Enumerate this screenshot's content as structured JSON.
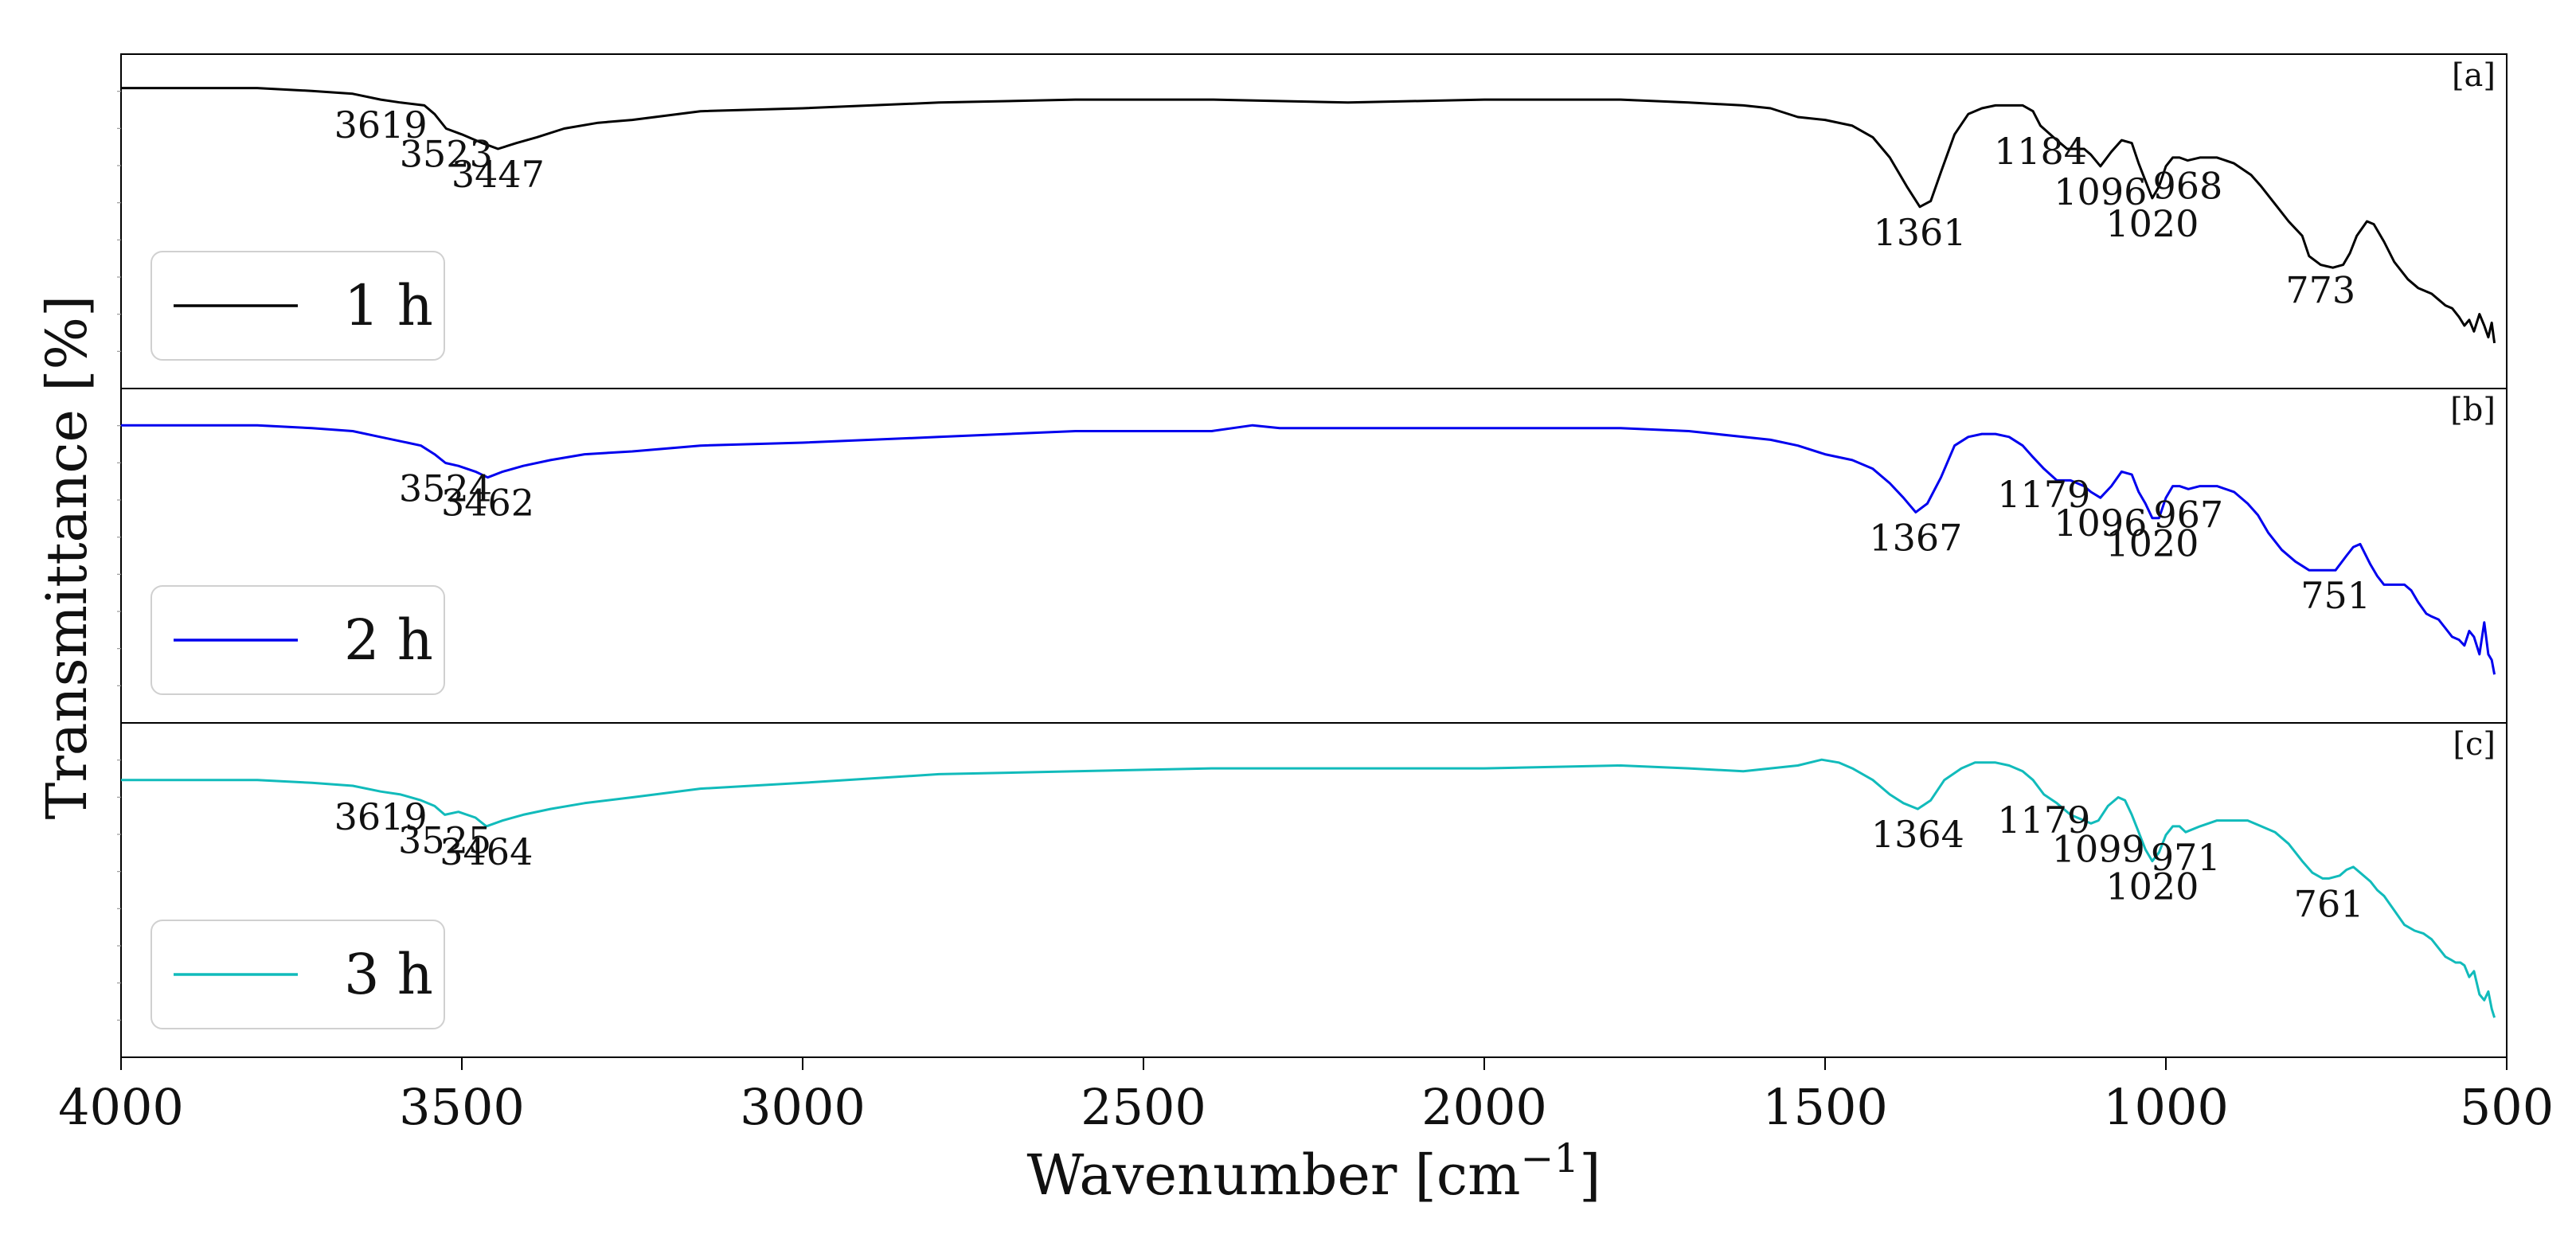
{
  "chart_data": {
    "type": "line",
    "xlabel": "Wavenumber [cm",
    "xlabel_sup": "−1",
    "xlabel_close": "]",
    "ylabel": "Transmittance [%]",
    "xlim": [
      4000,
      500
    ],
    "x_ticks": [
      "4000",
      "3500",
      "3000",
      "2500",
      "2000",
      "1500",
      "1000",
      "500"
    ],
    "panels": [
      {
        "tag": "[a]",
        "legend": "1 h",
        "color": "#000000",
        "ylim": [
          0,
          100
        ],
        "x": [
          4000,
          3900,
          3800,
          3720,
          3660,
          3619,
          3590,
          3555,
          3540,
          3523,
          3500,
          3470,
          3447,
          3420,
          3390,
          3350,
          3300,
          3250,
          3150,
          3000,
          2800,
          2600,
          2400,
          2200,
          2000,
          1800,
          1700,
          1620,
          1580,
          1540,
          1500,
          1460,
          1430,
          1405,
          1380,
          1361,
          1345,
          1330,
          1310,
          1290,
          1270,
          1250,
          1230,
          1210,
          1195,
          1184,
          1165,
          1145,
          1120,
          1110,
          1096,
          1080,
          1065,
          1050,
          1040,
          1030,
          1020,
          1010,
          1000,
          990,
          980,
          968,
          950,
          925,
          900,
          875,
          860,
          840,
          820,
          800,
          790,
          773,
          755,
          740,
          730,
          720,
          705,
          695,
          680,
          665,
          645,
          630,
          620,
          610,
          600,
          590,
          580,
          570,
          562,
          555,
          548,
          540,
          533,
          527,
          522,
          518
        ],
        "y": [
          96,
          96,
          96,
          95,
          94,
          92,
          91,
          90,
          87,
          82,
          80,
          77,
          75,
          77,
          79,
          82,
          84,
          85,
          88,
          89,
          91,
          92,
          92,
          91,
          92,
          92,
          91,
          90,
          89,
          86,
          85,
          83,
          79,
          72,
          62,
          55,
          57,
          67,
          80,
          87,
          89,
          90,
          90,
          90,
          88,
          83,
          79,
          75,
          75,
          73,
          69,
          74,
          78,
          77,
          70,
          64,
          58,
          62,
          69,
          72,
          72,
          71,
          72,
          72,
          70,
          66,
          62,
          56,
          50,
          45,
          38,
          35,
          34,
          35,
          39,
          45,
          50,
          49,
          43,
          36,
          30,
          27,
          26,
          25,
          23,
          21,
          20,
          17,
          14,
          16,
          12,
          18,
          14,
          10,
          15,
          8
        ]
      },
      {
        "tag": "[b]",
        "legend": "2 h",
        "color": "#0000ee",
        "ylim": [
          0,
          100
        ],
        "x": [
          4000,
          3900,
          3800,
          3720,
          3660,
          3620,
          3580,
          3560,
          3540,
          3524,
          3505,
          3480,
          3462,
          3440,
          3410,
          3370,
          3320,
          3250,
          3150,
          3000,
          2800,
          2600,
          2500,
          2400,
          2340,
          2300,
          2200,
          2000,
          1800,
          1700,
          1620,
          1580,
          1540,
          1500,
          1460,
          1430,
          1405,
          1385,
          1367,
          1350,
          1330,
          1310,
          1290,
          1270,
          1250,
          1230,
          1210,
          1195,
          1179,
          1160,
          1140,
          1120,
          1110,
          1096,
          1080,
          1065,
          1050,
          1040,
          1030,
          1020,
          1010,
          1000,
          990,
          980,
          967,
          950,
          925,
          900,
          880,
          865,
          850,
          830,
          810,
          790,
          770,
          751,
          735,
          725,
          715,
          700,
          690,
          680,
          665,
          650,
          640,
          630,
          618,
          610,
          600,
          590,
          580,
          570,
          562,
          555,
          548,
          540,
          533,
          527,
          522,
          518
        ],
        "y": [
          95,
          95,
          95,
          94,
          93,
          91,
          89,
          88,
          85,
          82,
          81,
          79,
          77,
          79,
          81,
          83,
          85,
          86,
          88,
          89,
          91,
          93,
          93,
          93,
          95,
          94,
          94,
          94,
          94,
          93,
          91,
          90,
          88,
          85,
          83,
          80,
          75,
          70,
          65,
          68,
          77,
          88,
          91,
          92,
          92,
          91,
          88,
          84,
          80,
          76,
          76,
          74,
          72,
          70,
          74,
          79,
          78,
          72,
          68,
          63,
          63,
          70,
          74,
          74,
          73,
          74,
          74,
          72,
          68,
          64,
          58,
          52,
          48,
          45,
          45,
          45,
          50,
          53,
          54,
          47,
          43,
          40,
          40,
          40,
          38,
          34,
          30,
          29,
          28,
          25,
          22,
          21,
          19,
          24,
          22,
          16,
          27,
          16,
          14,
          9
        ]
      },
      {
        "tag": "[c]",
        "legend": "3 h",
        "color": "#11bbbb",
        "ylim": [
          0,
          100
        ],
        "x": [
          4000,
          3900,
          3800,
          3720,
          3660,
          3619,
          3590,
          3560,
          3540,
          3525,
          3505,
          3480,
          3464,
          3440,
          3410,
          3370,
          3320,
          3250,
          3150,
          3000,
          2800,
          2600,
          2400,
          2200,
          2000,
          1800,
          1700,
          1620,
          1580,
          1540,
          1505,
          1480,
          1460,
          1430,
          1405,
          1385,
          1364,
          1345,
          1325,
          1300,
          1280,
          1250,
          1230,
          1210,
          1195,
          1179,
          1160,
          1140,
          1120,
          1110,
          1099,
          1085,
          1070,
          1060,
          1050,
          1040,
          1030,
          1020,
          1010,
          1000,
          990,
          980,
          971,
          950,
          925,
          900,
          880,
          860,
          840,
          820,
          800,
          785,
          770,
          761,
          745,
          735,
          725,
          715,
          700,
          690,
          680,
          665,
          650,
          635,
          622,
          610,
          600,
          590,
          582,
          575,
          568,
          562,
          555,
          548,
          540,
          533,
          527,
          522,
          518
        ],
        "y": [
          88,
          88,
          88,
          87,
          86,
          84,
          83,
          81,
          79,
          76,
          77,
          75,
          72,
          74,
          76,
          78,
          80,
          82,
          85,
          87,
          90,
          91,
          92,
          92,
          92,
          93,
          92,
          91,
          92,
          93,
          95,
          94,
          92,
          88,
          83,
          80,
          78,
          81,
          88,
          92,
          94,
          94,
          93,
          91,
          88,
          83,
          80,
          76,
          74,
          73,
          74,
          79,
          82,
          81,
          76,
          70,
          64,
          60,
          63,
          69,
          72,
          72,
          70,
          72,
          74,
          74,
          74,
          72,
          70,
          66,
          60,
          56,
          54,
          54,
          55,
          57,
          58,
          56,
          53,
          50,
          48,
          43,
          38,
          36,
          35,
          33,
          30,
          27,
          26,
          25,
          25,
          24,
          20,
          22,
          14,
          12,
          15,
          9,
          6
        ]
      }
    ],
    "annotations": [
      [
        {
          "label": "3619",
          "x": 3619,
          "y": 92
        },
        {
          "label": "3523",
          "x": 3523,
          "y": 82
        },
        {
          "label": "3447",
          "x": 3447,
          "y": 75
        },
        {
          "label": "1361",
          "x": 1361,
          "y": 55
        },
        {
          "label": "1184",
          "x": 1184,
          "y": 83
        },
        {
          "label": "1096",
          "x": 1096,
          "y": 69
        },
        {
          "label": "968",
          "x": 968,
          "y": 71
        },
        {
          "label": "1020",
          "x": 1020,
          "y": 58
        },
        {
          "label": "773",
          "x": 773,
          "y": 35
        }
      ],
      [
        {
          "label": "3524",
          "x": 3524,
          "y": 82
        },
        {
          "label": "3462",
          "x": 3462,
          "y": 77
        },
        {
          "label": "1367",
          "x": 1367,
          "y": 65
        },
        {
          "label": "1179",
          "x": 1179,
          "y": 80
        },
        {
          "label": "1096",
          "x": 1096,
          "y": 70
        },
        {
          "label": "967",
          "x": 967,
          "y": 73
        },
        {
          "label": "1020",
          "x": 1020,
          "y": 63
        },
        {
          "label": "751",
          "x": 751,
          "y": 45
        }
      ],
      [
        {
          "label": "3619",
          "x": 3619,
          "y": 84
        },
        {
          "label": "3525",
          "x": 3525,
          "y": 76
        },
        {
          "label": "3464",
          "x": 3464,
          "y": 72
        },
        {
          "label": "1364",
          "x": 1364,
          "y": 78
        },
        {
          "label": "1179",
          "x": 1179,
          "y": 83
        },
        {
          "label": "1099",
          "x": 1099,
          "y": 73
        },
        {
          "label": "971",
          "x": 971,
          "y": 70
        },
        {
          "label": "1020",
          "x": 1020,
          "y": 60
        },
        {
          "label": "761",
          "x": 761,
          "y": 54
        }
      ]
    ]
  }
}
